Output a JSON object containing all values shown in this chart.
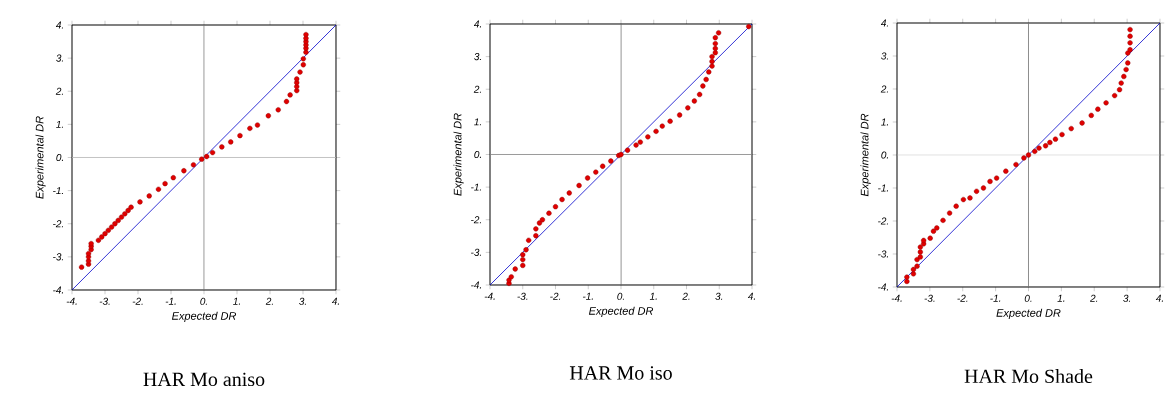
{
  "chart_data": [
    {
      "type": "scatter",
      "title": "HAR Mo aniso",
      "xlabel": "Expected DR",
      "ylabel": "Experimental DR",
      "xlim": [
        -4,
        4
      ],
      "ylim": [
        -4,
        4
      ],
      "xticks": [
        {
          "value": -4,
          "label": "-4."
        },
        {
          "value": -3,
          "label": "-3."
        },
        {
          "value": -2,
          "label": "-2."
        },
        {
          "value": -1,
          "label": "-1."
        },
        {
          "value": 0,
          "label": "0."
        },
        {
          "value": 1,
          "label": "1."
        },
        {
          "value": 2,
          "label": "2."
        },
        {
          "value": 3,
          "label": "3."
        },
        {
          "value": 4,
          "label": "4."
        }
      ],
      "yticks": [
        {
          "value": -4,
          "label": "-4."
        },
        {
          "value": -3,
          "label": "-3."
        },
        {
          "value": -2,
          "label": "-2."
        },
        {
          "value": -1,
          "label": "-1."
        },
        {
          "value": 0,
          "label": "0."
        },
        {
          "value": 1,
          "label": "1."
        },
        {
          "value": 2,
          "label": "2."
        },
        {
          "value": 3,
          "label": "3."
        },
        {
          "value": 4,
          "label": "4."
        }
      ],
      "ref_lines": [
        {
          "axis": "x",
          "value": 0,
          "color": "#707070"
        },
        {
          "axis": "y",
          "value": 0,
          "color": "#b4b4b4"
        }
      ],
      "series": [
        {
          "type": "line",
          "marker": "none",
          "color": "#0000cc",
          "x": [
            -4,
            4
          ],
          "values": [
            -4,
            4
          ]
        },
        {
          "marker": "circle",
          "color": "#e00000",
          "x": [
            -3.71,
            -3.5,
            -3.5,
            -3.5,
            -3.5,
            -3.42,
            -3.42,
            -3.42,
            -3.2,
            -3.1,
            -3.0,
            -2.9,
            -2.8,
            -2.7,
            -2.6,
            -2.5,
            -2.4,
            -2.3,
            -2.21,
            -1.94,
            -1.66,
            -1.38,
            -1.18,
            -0.93,
            -0.61,
            -0.32,
            -0.07,
            0.08,
            0.26,
            0.54,
            0.81,
            1.09,
            1.39,
            1.62,
            1.95,
            2.25,
            2.5,
            2.61,
            2.81,
            2.81,
            2.81,
            2.81,
            2.91,
            3.01,
            3.01,
            3.09,
            3.09,
            3.09,
            3.09,
            3.09,
            3.09
          ],
          "values": [
            -3.31,
            -3.22,
            -3.12,
            -3.0,
            -2.9,
            -2.78,
            -2.68,
            -2.6,
            -2.5,
            -2.4,
            -2.3,
            -2.2,
            -2.1,
            -2.0,
            -1.9,
            -1.8,
            -1.7,
            -1.6,
            -1.5,
            -1.34,
            -1.16,
            -0.96,
            -0.79,
            -0.61,
            -0.4,
            -0.22,
            -0.05,
            0.03,
            0.15,
            0.32,
            0.47,
            0.66,
            0.88,
            0.98,
            1.26,
            1.44,
            1.69,
            1.89,
            2.02,
            2.14,
            2.26,
            2.37,
            2.58,
            2.8,
            2.98,
            3.18,
            3.3,
            3.4,
            3.5,
            3.6,
            3.71
          ]
        }
      ]
    },
    {
      "type": "scatter",
      "title": "HAR Mo iso",
      "xlabel": "Expected DR",
      "ylabel": "Experimental DR",
      "xlim": [
        -4,
        4
      ],
      "ylim": [
        -4,
        4
      ],
      "xticks": [
        {
          "value": -4,
          "label": "-4."
        },
        {
          "value": -3,
          "label": "-3."
        },
        {
          "value": -2,
          "label": "-2."
        },
        {
          "value": -1,
          "label": "-1."
        },
        {
          "value": 0,
          "label": "0."
        },
        {
          "value": 1,
          "label": "1."
        },
        {
          "value": 2,
          "label": "2."
        },
        {
          "value": 3,
          "label": "3."
        },
        {
          "value": 4,
          "label": "4."
        }
      ],
      "yticks": [
        {
          "value": -4,
          "label": "-4."
        },
        {
          "value": -3,
          "label": "-3."
        },
        {
          "value": -2,
          "label": "-2."
        },
        {
          "value": -1,
          "label": "-1."
        },
        {
          "value": 0,
          "label": "0."
        },
        {
          "value": 1,
          "label": "1."
        },
        {
          "value": 2,
          "label": "2."
        },
        {
          "value": 3,
          "label": "3."
        },
        {
          "value": 4,
          "label": "4."
        }
      ],
      "ref_lines": [
        {
          "axis": "x",
          "value": 0,
          "color": "#606060"
        },
        {
          "axis": "y",
          "value": 0,
          "color": "#808080"
        }
      ],
      "series": [
        {
          "type": "line",
          "marker": "none",
          "color": "#0000cc",
          "x": [
            -4,
            4
          ],
          "values": [
            -4,
            4
          ]
        },
        {
          "marker": "circle",
          "color": "#e00000",
          "x": [
            -3.42,
            -3.42,
            -3.35,
            -3.23,
            -3.0,
            -3.0,
            -3.0,
            -2.9,
            -2.82,
            -2.6,
            -2.6,
            -2.49,
            -2.4,
            -2.2,
            -2.0,
            -1.8,
            -1.58,
            -1.28,
            -1.02,
            -0.77,
            -0.56,
            -0.31,
            -0.07,
            0.0,
            0.2,
            0.46,
            0.59,
            0.82,
            1.07,
            1.26,
            1.5,
            1.79,
            2.04,
            2.24,
            2.4,
            2.5,
            2.6,
            2.68,
            2.78,
            2.78,
            2.78,
            2.88,
            2.88,
            2.88,
            2.88,
            2.98,
            3.9
          ],
          "values": [
            -3.95,
            -3.85,
            -3.75,
            -3.51,
            -3.4,
            -3.22,
            -3.07,
            -2.92,
            -2.63,
            -2.49,
            -2.28,
            -2.1,
            -2.0,
            -1.8,
            -1.6,
            -1.38,
            -1.18,
            -0.95,
            -0.72,
            -0.54,
            -0.36,
            -0.2,
            -0.03,
            0.0,
            0.13,
            0.29,
            0.38,
            0.54,
            0.71,
            0.87,
            1.02,
            1.21,
            1.43,
            1.64,
            1.84,
            2.1,
            2.3,
            2.53,
            2.71,
            2.85,
            3.0,
            3.12,
            3.25,
            3.4,
            3.58,
            3.73,
            3.92
          ]
        }
      ]
    },
    {
      "type": "scatter",
      "title": "HAR Mo Shade",
      "xlabel": "Expected DR",
      "ylabel": "Experimental DR",
      "xlim": [
        -4,
        4
      ],
      "ylim": [
        -4,
        4
      ],
      "xticks": [
        {
          "value": -4,
          "label": "-4."
        },
        {
          "value": -3,
          "label": "-3."
        },
        {
          "value": -2,
          "label": "-2."
        },
        {
          "value": -1,
          "label": "-1."
        },
        {
          "value": 0,
          "label": "0."
        },
        {
          "value": 1,
          "label": "1."
        },
        {
          "value": 2,
          "label": "2."
        },
        {
          "value": 3,
          "label": "3."
        },
        {
          "value": 4,
          "label": "4."
        }
      ],
      "yticks": [
        {
          "value": -4,
          "label": "-4."
        },
        {
          "value": -3,
          "label": "-3."
        },
        {
          "value": -2,
          "label": "-2."
        },
        {
          "value": -1,
          "label": "-1."
        },
        {
          "value": 0,
          "label": "0."
        },
        {
          "value": 1,
          "label": "1."
        },
        {
          "value": 2,
          "label": "2."
        },
        {
          "value": 3,
          "label": "3."
        },
        {
          "value": 4,
          "label": "4."
        }
      ],
      "ref_lines": [
        {
          "axis": "x",
          "value": 0,
          "color": "#707070"
        },
        {
          "axis": "y",
          "value": 0,
          "color": "#b4b4b4"
        }
      ],
      "series": [
        {
          "type": "line",
          "marker": "none",
          "color": "#0000cc",
          "x": [
            -4,
            4
          ],
          "values": [
            -4,
            4
          ]
        },
        {
          "marker": "circle",
          "color": "#e00000",
          "x": [
            -3.7,
            -3.7,
            -3.5,
            -3.5,
            -3.39,
            -3.39,
            -3.29,
            -3.29,
            -3.29,
            -3.19,
            -3.19,
            -2.99,
            -2.89,
            -2.79,
            -2.6,
            -2.4,
            -2.2,
            -1.98,
            -1.78,
            -1.58,
            -1.37,
            -1.17,
            -0.97,
            -0.69,
            -0.38,
            -0.14,
            0.0,
            0.19,
            0.32,
            0.52,
            0.65,
            0.82,
            1.02,
            1.3,
            1.63,
            1.91,
            2.11,
            2.36,
            2.62,
            2.77,
            2.82,
            2.9,
            2.97,
            3.02,
            3.02,
            3.09,
            3.09,
            3.09,
            3.09
          ],
          "values": [
            -3.83,
            -3.7,
            -3.6,
            -3.47,
            -3.37,
            -3.17,
            -3.09,
            -2.94,
            -2.79,
            -2.69,
            -2.59,
            -2.52,
            -2.31,
            -2.21,
            -1.98,
            -1.76,
            -1.55,
            -1.35,
            -1.3,
            -1.1,
            -1.0,
            -0.8,
            -0.7,
            -0.49,
            -0.29,
            -0.09,
            0.0,
            0.11,
            0.21,
            0.28,
            0.38,
            0.48,
            0.62,
            0.8,
            0.97,
            1.2,
            1.39,
            1.58,
            1.8,
            1.98,
            2.18,
            2.38,
            2.59,
            2.79,
            3.09,
            3.19,
            3.4,
            3.6,
            3.8
          ]
        }
      ]
    }
  ]
}
